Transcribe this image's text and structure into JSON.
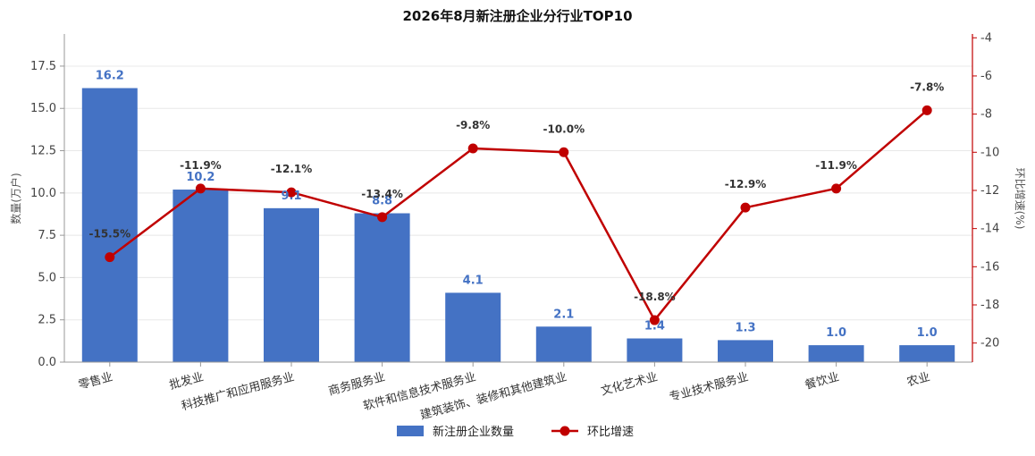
{
  "chart_data": {
    "type": "bar",
    "title": "2026年8月新注册企业分行业TOP10",
    "categories": [
      "零售业",
      "批发业",
      "科技推广和应用服务业",
      "商务服务业",
      "软件和信息技术服务业",
      "建筑装饰、装修和其他建筑业",
      "文化艺术业",
      "专业技术服务业",
      "餐饮业",
      "农业"
    ],
    "series": [
      {
        "name": "新注册企业数量",
        "type": "bar",
        "axis": "left",
        "color": "#4472c4",
        "values": [
          16.2,
          10.2,
          9.1,
          8.8,
          4.1,
          2.1,
          1.4,
          1.3,
          1.0,
          1.0
        ],
        "labels": [
          "16.2",
          "10.2",
          "9.1",
          "8.8",
          "4.1",
          "2.1",
          "1.4",
          "1.3",
          "1.0",
          "1.0"
        ]
      },
      {
        "name": "环比增速",
        "type": "line",
        "axis": "right",
        "color": "#c00000",
        "values": [
          -15.5,
          -11.9,
          -12.1,
          -13.4,
          -9.8,
          -10.0,
          -18.8,
          -12.9,
          -11.9,
          -7.8
        ],
        "labels": [
          "-15.5%",
          "-11.9%",
          "-12.1%",
          "-13.4%",
          "-9.8%",
          "-10.0%",
          "-18.8%",
          "-12.9%",
          "-11.9%",
          "-7.8%"
        ]
      }
    ],
    "ylabel": "数量(万户)",
    "ylabel_right": "环比增速(%)",
    "ylim": [
      0,
      19.4
    ],
    "ylim_right": [
      -21,
      -3.8
    ],
    "yticks": [
      "0.0",
      "2.5",
      "5.0",
      "7.5",
      "10.0",
      "12.5",
      "15.0",
      "17.5"
    ],
    "yticks_right": [
      "-20",
      "-18",
      "-16",
      "-14",
      "-12",
      "-10",
      "-8",
      "-6",
      "-4"
    ],
    "grid": true,
    "legend_position": "bottom"
  }
}
